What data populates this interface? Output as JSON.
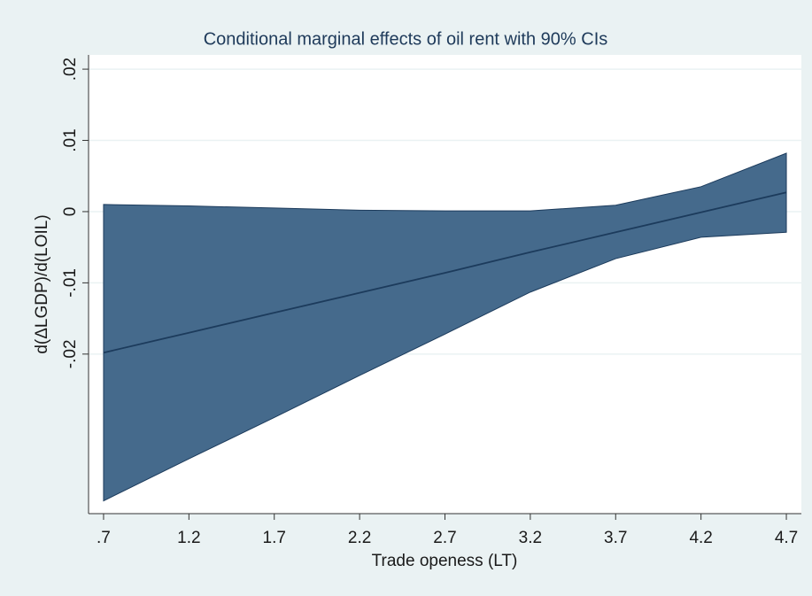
{
  "chart_data": {
    "type": "ci_area",
    "title": "Conditional marginal effects of oil rent with 90% CIs",
    "xlabel": "Trade openess (LT)",
    "ylabel": "d(ΔLGDP)/d(LOIL)",
    "x": [
      0.7,
      1.2,
      1.7,
      2.2,
      2.7,
      3.2,
      3.7,
      4.2,
      4.7
    ],
    "values": [
      -0.0198,
      -0.017,
      -0.0142,
      -0.0114,
      -0.0086,
      -0.0057,
      -0.0029,
      -0.0001,
      0.0027
    ],
    "ci_upper": [
      0.001,
      0.0008,
      0.0005,
      0.0002,
      0.0001,
      0.0001,
      0.0009,
      0.0035,
      0.0082
    ],
    "ci_lower": [
      -0.0406,
      -0.0347,
      -0.0289,
      -0.023,
      -0.0172,
      -0.0113,
      -0.0066,
      -0.0036,
      -0.0029
    ],
    "color": "#456a8c",
    "line_color": "#1c3b5c",
    "xlim": [
      0.612,
      4.788
    ],
    "ylim": [
      -0.0424,
      0.022
    ],
    "xticks": [
      {
        "value": 0.7,
        "label": ".7"
      },
      1.2,
      1.7,
      2.2,
      2.7,
      3.2,
      3.7,
      4.2,
      4.7
    ],
    "yticks": [
      {
        "value": -0.02,
        "label": "-.02"
      },
      {
        "value": -0.01,
        "label": "-.01"
      },
      0,
      {
        "value": 0.01,
        "label": ".01"
      },
      {
        "value": 0.02,
        "label": ".02"
      }
    ],
    "grid": true
  }
}
